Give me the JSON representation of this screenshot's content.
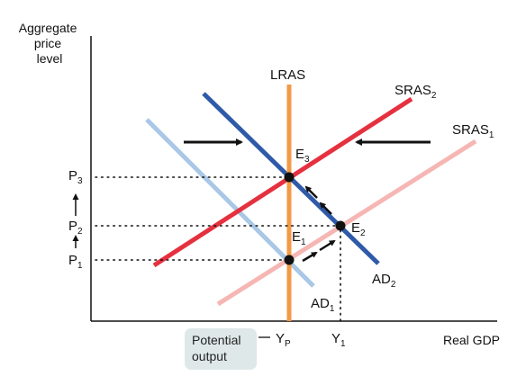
{
  "axes": {
    "y_label_lines": [
      "Aggregate",
      "price",
      "level"
    ],
    "x_label": "Real GDP"
  },
  "curves": {
    "lras": "LRAS",
    "sras1": {
      "base": "SRAS",
      "sub": "1"
    },
    "sras2": {
      "base": "SRAS",
      "sub": "2"
    },
    "ad1": {
      "base": "AD",
      "sub": "1"
    },
    "ad2": {
      "base": "AD",
      "sub": "2"
    }
  },
  "equilibria": {
    "e1": {
      "base": "E",
      "sub": "1"
    },
    "e2": {
      "base": "E",
      "sub": "2"
    },
    "e3": {
      "base": "E",
      "sub": "3"
    }
  },
  "price_levels": {
    "p1": {
      "base": "P",
      "sub": "1"
    },
    "p2": {
      "base": "P",
      "sub": "2"
    },
    "p3": {
      "base": "P",
      "sub": "3"
    }
  },
  "output_levels": {
    "yp": {
      "base": "Y",
      "sub": "P"
    },
    "y1": {
      "base": "Y",
      "sub": "1"
    }
  },
  "annotation": {
    "potential_output_lines": [
      "Potential",
      "output"
    ]
  },
  "colors": {
    "lras": "#f39a45",
    "sras1": "#f6b6b3",
    "sras2": "#e5313f",
    "ad1": "#a9c7e6",
    "ad2": "#2e5aa8",
    "axis": "#111111"
  }
}
